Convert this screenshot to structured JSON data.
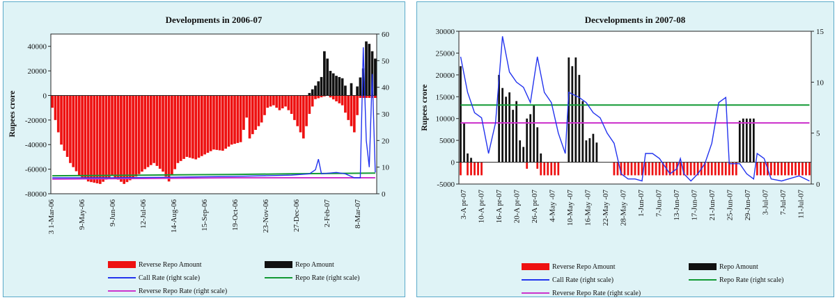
{
  "chart_data": [
    {
      "type": "bar",
      "title": "Developments in 2006-07",
      "ylabel": "Rupees crore",
      "ylim": [
        -80000,
        50000
      ],
      "yticks": [
        -80000,
        -60000,
        -40000,
        -20000,
        0,
        20000,
        40000
      ],
      "y2lim": [
        0,
        60
      ],
      "y2ticks": [
        0,
        10,
        20,
        30,
        40,
        50,
        60
      ],
      "xlabels": [
        "3 1-Mar-06",
        "9-May-06",
        "9-Jun-06",
        "12-Jul-06",
        "14-Aug-06",
        "15-Sep-06",
        "19-Oct-06",
        "23-Nov-06",
        "27-Dec-06",
        "2-Feb-07",
        "8-Mar-07"
      ],
      "legend": [
        "Reverse Repo Amount",
        "Repo Amount",
        "Call Rate (right scale)",
        "Repo Rate (right scale)",
        "Reverse Repo Rate (right scale)"
      ],
      "colors": {
        "reverse_repo": "#ee1111",
        "repo": "#111111",
        "call": "#2233ee",
        "repo_rate": "#119933",
        "rev_rate": "#cc33cc"
      },
      "reverse_repo_profile": [
        [
          0,
          -10000
        ],
        [
          3,
          -40000
        ],
        [
          6,
          -55000
        ],
        [
          9,
          -65000
        ],
        [
          12,
          -70000
        ],
        [
          16,
          -72000
        ],
        [
          20,
          -65000
        ],
        [
          24,
          -72000
        ],
        [
          28,
          -66000
        ],
        [
          31,
          -60000
        ],
        [
          34,
          -55000
        ],
        [
          37,
          -62000
        ],
        [
          39,
          -70000
        ],
        [
          42,
          -55000
        ],
        [
          45,
          -50000
        ],
        [
          48,
          -52000
        ],
        [
          51,
          -48000
        ],
        [
          54,
          -44000
        ],
        [
          57,
          -45000
        ],
        [
          60,
          -40000
        ],
        [
          63,
          -38000
        ],
        [
          65,
          -18000
        ],
        [
          66,
          -35000
        ],
        [
          68,
          -28000
        ],
        [
          70,
          -22000
        ],
        [
          72,
          -10000
        ],
        [
          74,
          -8000
        ],
        [
          76,
          -12000
        ],
        [
          78,
          -9000
        ],
        [
          80,
          -15000
        ],
        [
          82,
          -25000
        ],
        [
          84,
          -35000
        ],
        [
          86,
          -15000
        ],
        [
          88,
          -3000
        ],
        [
          92,
          0
        ],
        [
          97,
          -8000
        ],
        [
          99,
          -20000
        ],
        [
          101,
          -30000
        ],
        [
          103,
          -2000
        ],
        [
          108,
          -2000
        ]
      ],
      "repo_profile": [
        [
          86,
          2000
        ],
        [
          88,
          8000
        ],
        [
          90,
          15000
        ],
        [
          91,
          36000
        ],
        [
          92,
          30000
        ],
        [
          93,
          20000
        ],
        [
          95,
          16000
        ],
        [
          97,
          14000
        ],
        [
          98,
          8000
        ],
        [
          99,
          0
        ],
        [
          100,
          10000
        ],
        [
          101,
          0
        ],
        [
          104,
          22000
        ],
        [
          105,
          44000
        ],
        [
          106,
          42000
        ],
        [
          107,
          36000
        ],
        [
          108,
          30000
        ]
      ],
      "call_rate": [
        [
          0,
          6
        ],
        [
          20,
          6
        ],
        [
          40,
          6.2
        ],
        [
          60,
          6.5
        ],
        [
          80,
          7
        ],
        [
          86,
          7.5
        ],
        [
          88,
          9
        ],
        [
          89,
          13
        ],
        [
          90,
          7.5
        ],
        [
          95,
          8
        ],
        [
          98,
          7.5
        ],
        [
          101,
          6
        ],
        [
          103,
          6
        ],
        [
          104,
          55
        ],
        [
          105,
          20
        ],
        [
          106,
          10
        ],
        [
          107,
          45
        ],
        [
          108,
          8
        ]
      ],
      "repo_rate": [
        [
          0,
          6.75
        ],
        [
          30,
          7
        ],
        [
          60,
          7.25
        ],
        [
          80,
          7.5
        ],
        [
          108,
          7.75
        ]
      ],
      "reverse_repo_rate": [
        [
          0,
          5.5
        ],
        [
          30,
          5.75
        ],
        [
          60,
          6
        ],
        [
          108,
          6
        ]
      ]
    },
    {
      "type": "bar",
      "title": "Decvelopments in 2007-08",
      "ylabel": "Rupees crore",
      "ylim": [
        -5000,
        30000
      ],
      "yticks": [
        -5000,
        0,
        5000,
        10000,
        15000,
        20000,
        25000,
        30000
      ],
      "y2lim": [
        0,
        15
      ],
      "y2ticks": [
        0,
        5,
        10,
        15
      ],
      "xlabels": [
        "3-A pr-07",
        "10-A pr-07",
        "16-A pr-07",
        "20-A pr-07",
        "26-A pr-07",
        "4-May -07",
        "10-May -07",
        "16-May -07",
        "22-May -07",
        "28-May -07",
        "1-Jun-07",
        "7-Jun-07",
        "13-Jun-07",
        "17-Jun-07",
        "21-Jun-07",
        "25-Jun-07",
        "29-Jun-07",
        "3-Jul-07",
        "7-Jul-07",
        "11-Jul-07"
      ],
      "legend": [
        "Reverse Repo Amount",
        "Repo Amount",
        "Call Rate (right scale)",
        "Repo Rate (right scale)",
        "Reverse Repo Rate (right scale)"
      ],
      "colors": {
        "reverse_repo": "#ee1111",
        "repo": "#111111",
        "call": "#2233ee",
        "repo_rate": "#119933",
        "rev_rate": "#cc33cc"
      },
      "repo_bars": [
        22000,
        9000,
        2000,
        1000,
        0,
        0,
        0,
        0,
        0,
        0,
        0,
        20000,
        17000,
        15000,
        16000,
        12000,
        14000,
        5000,
        3500,
        10000,
        11000,
        13000,
        8000,
        2000,
        0,
        0,
        0,
        0,
        0,
        0,
        0,
        24000,
        22000,
        24000,
        20000,
        14000,
        5000,
        5500,
        6500,
        4500,
        0,
        0,
        0,
        0,
        0,
        0,
        0,
        0,
        0,
        0,
        0,
        0,
        0,
        0,
        0,
        0,
        0,
        0,
        0,
        0,
        0,
        0,
        0,
        0,
        0,
        0,
        0,
        0,
        0,
        0,
        0,
        0,
        0,
        0,
        0,
        0,
        0,
        0,
        0,
        0,
        9500,
        10000,
        10000,
        10000,
        10000,
        0,
        0,
        0,
        0,
        0,
        0,
        0,
        0,
        0,
        0,
        0,
        0,
        0,
        0,
        0,
        0
      ],
      "reverse_repo_bars": [
        -3000,
        0,
        -3000,
        -3000,
        -3000,
        -3000,
        -3000,
        0,
        0,
        0,
        0,
        0,
        0,
        0,
        0,
        0,
        0,
        0,
        0,
        -1500,
        0,
        0,
        -1500,
        -3000,
        -3000,
        -3000,
        -3000,
        -3000,
        -3000,
        0,
        0,
        0,
        0,
        0,
        0,
        0,
        0,
        0,
        0,
        0,
        0,
        0,
        0,
        0,
        -3000,
        -3000,
        -3000,
        -3000,
        -3000,
        -3000,
        -3000,
        -3000,
        -3000,
        -3000,
        -3000,
        -3000,
        -3000,
        -3000,
        -3000,
        -3000,
        -3000,
        -3000,
        -3000,
        -3000,
        -3000,
        -3000,
        -3000,
        -3000,
        -3000,
        -3000,
        -3000,
        -3000,
        -3000,
        -3000,
        -3000,
        -3000,
        -3000,
        -3000,
        -3000,
        -3000,
        0,
        0,
        0,
        0,
        0,
        -3000,
        -3000,
        -3000,
        -3000,
        -3000,
        -3000,
        -3000,
        -3000,
        -3000,
        -3000,
        -3000,
        -3000,
        -3000,
        -3000,
        -3000,
        -3000
      ],
      "call_rate": [
        [
          0,
          12.5
        ],
        [
          2,
          9
        ],
        [
          4,
          7
        ],
        [
          6,
          6.5
        ],
        [
          8,
          3
        ],
        [
          10,
          6
        ],
        [
          12,
          14.5
        ],
        [
          14,
          11
        ],
        [
          16,
          10
        ],
        [
          18,
          9.5
        ],
        [
          20,
          8
        ],
        [
          22,
          12.5
        ],
        [
          24,
          9
        ],
        [
          26,
          8
        ],
        [
          28,
          5
        ],
        [
          30,
          3
        ],
        [
          31,
          9
        ],
        [
          34,
          8.5
        ],
        [
          36,
          8
        ],
        [
          38,
          7
        ],
        [
          40,
          6.5
        ],
        [
          42,
          5
        ],
        [
          44,
          4
        ],
        [
          46,
          1
        ],
        [
          48,
          0.5
        ],
        [
          50,
          0.5
        ],
        [
          52,
          0.3
        ],
        [
          53,
          3
        ],
        [
          55,
          3
        ],
        [
          57,
          2.5
        ],
        [
          60,
          1
        ],
        [
          62,
          1.5
        ],
        [
          63,
          2.5
        ],
        [
          64,
          1
        ],
        [
          66,
          0.3
        ],
        [
          68,
          1
        ],
        [
          70,
          2
        ],
        [
          72,
          4
        ],
        [
          74,
          8
        ],
        [
          76,
          8.5
        ],
        [
          77,
          2
        ],
        [
          80,
          2
        ],
        [
          82,
          1
        ],
        [
          84,
          0.5
        ],
        [
          85,
          3
        ],
        [
          87,
          2.5
        ],
        [
          89,
          0.5
        ],
        [
          92,
          0.3
        ],
        [
          94,
          0.5
        ],
        [
          97,
          0.8
        ],
        [
          100,
          0.3
        ]
      ],
      "repo_rate": 7.75,
      "reverse_repo_rate": 6
    }
  ]
}
